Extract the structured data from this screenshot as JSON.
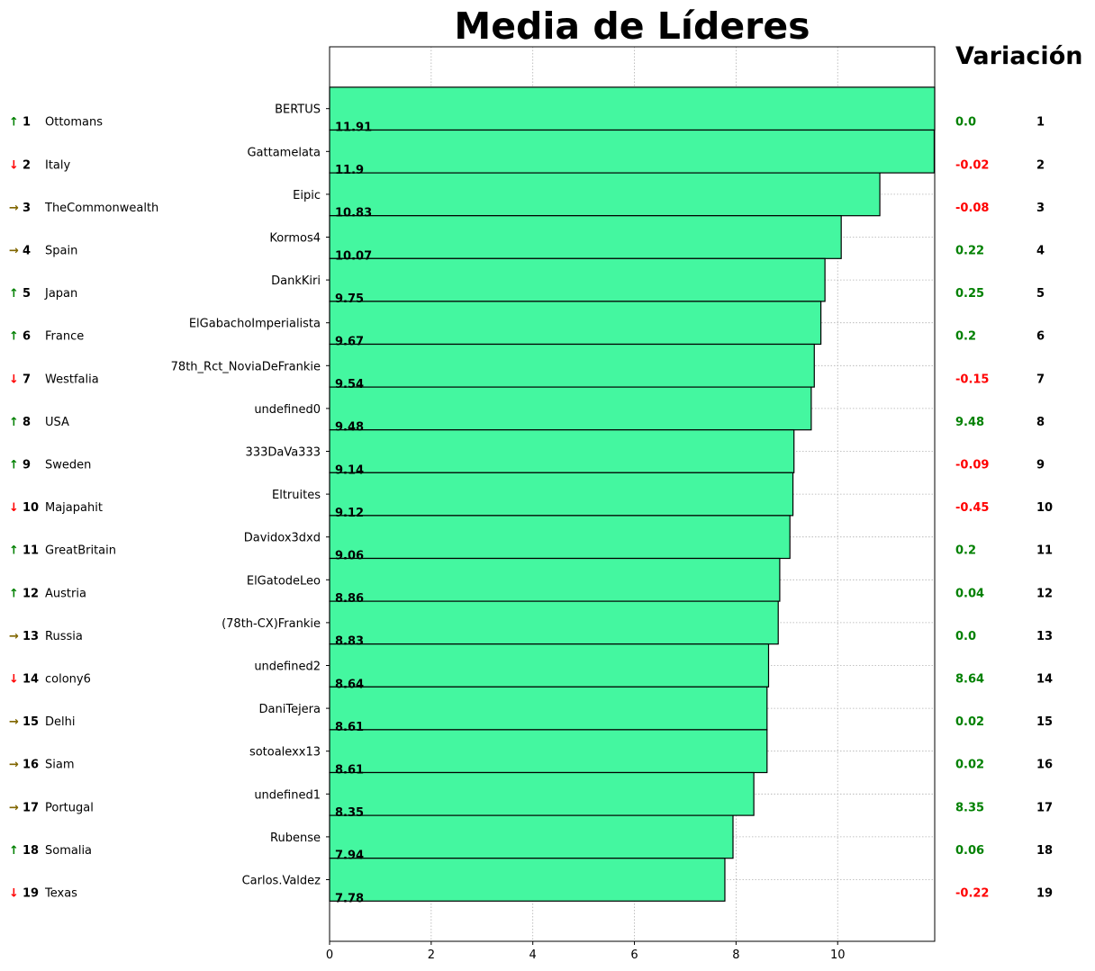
{
  "title": "Media de Líderes",
  "side_title": "Variación",
  "colors": {
    "bar": "#44f7a0",
    "up": "#008000",
    "down": "#ff0000",
    "same": "#806600",
    "pos_change": "#008000",
    "neg_change": "#ff0000"
  },
  "chart_data": {
    "type": "bar",
    "orientation": "horizontal",
    "title": "Media de Líderes",
    "xlim": [
      0,
      11.91
    ],
    "x_ticks": [
      0,
      2,
      4,
      6,
      8,
      10
    ],
    "grid": true,
    "categories": [
      "BERTUS",
      "Gattamelata",
      "Eipic",
      "Kormos4",
      "DankKiri",
      "ElGabachoImperialista",
      "78th_Rct_NoviaDeFrankie",
      "undefined0",
      "333DaVa333",
      "Eltruites",
      "Davidox3dxd",
      "ElGatodeLeo",
      "(78th-CX)Frankie",
      "undefined2",
      "DaniTejera",
      "sotoalexx13",
      "undefined1",
      "Rubense",
      "Carlos.Valdez"
    ],
    "values": [
      11.91,
      11.9,
      10.83,
      10.07,
      9.75,
      9.67,
      9.54,
      9.48,
      9.14,
      9.12,
      9.06,
      8.86,
      8.83,
      8.64,
      8.61,
      8.61,
      8.35,
      7.94,
      7.78
    ],
    "value_labels": [
      "11.91",
      "11.9",
      "10.83",
      "10.07",
      "9.75",
      "9.67",
      "9.54",
      "9.48",
      "9.14",
      "9.12",
      "9.06",
      "8.86",
      "8.83",
      "8.64",
      "8.61",
      "8.61",
      "8.35",
      "7.94",
      "7.78"
    ]
  },
  "left_table": [
    {
      "arrow": "↑",
      "dir": "up",
      "rank": "1",
      "nation": "Ottomans"
    },
    {
      "arrow": "↓",
      "dir": "down",
      "rank": "2",
      "nation": "Italy"
    },
    {
      "arrow": "→",
      "dir": "same",
      "rank": "3",
      "nation": "TheCommonwealth"
    },
    {
      "arrow": "→",
      "dir": "same",
      "rank": "4",
      "nation": "Spain"
    },
    {
      "arrow": "↑",
      "dir": "up",
      "rank": "5",
      "nation": "Japan"
    },
    {
      "arrow": "↑",
      "dir": "up",
      "rank": "6",
      "nation": "France"
    },
    {
      "arrow": "↓",
      "dir": "down",
      "rank": "7",
      "nation": "Westfalia"
    },
    {
      "arrow": "↑",
      "dir": "up",
      "rank": "8",
      "nation": "USA"
    },
    {
      "arrow": "↑",
      "dir": "up",
      "rank": "9",
      "nation": "Sweden"
    },
    {
      "arrow": "↓",
      "dir": "down",
      "rank": "10",
      "nation": "Majapahit"
    },
    {
      "arrow": "↑",
      "dir": "up",
      "rank": "11",
      "nation": "GreatBritain"
    },
    {
      "arrow": "↑",
      "dir": "up",
      "rank": "12",
      "nation": "Austria"
    },
    {
      "arrow": "→",
      "dir": "same",
      "rank": "13",
      "nation": "Russia"
    },
    {
      "arrow": "↓",
      "dir": "down",
      "rank": "14",
      "nation": "colony6"
    },
    {
      "arrow": "→",
      "dir": "same",
      "rank": "15",
      "nation": "Delhi"
    },
    {
      "arrow": "→",
      "dir": "same",
      "rank": "16",
      "nation": "Siam"
    },
    {
      "arrow": "→",
      "dir": "same",
      "rank": "17",
      "nation": "Portugal"
    },
    {
      "arrow": "↑",
      "dir": "up",
      "rank": "18",
      "nation": "Somalia"
    },
    {
      "arrow": "↓",
      "dir": "down",
      "rank": "19",
      "nation": "Texas"
    }
  ],
  "right_table": [
    {
      "change": "0.0",
      "sign": "pos",
      "rank": "1"
    },
    {
      "change": "-0.02",
      "sign": "neg",
      "rank": "2"
    },
    {
      "change": "-0.08",
      "sign": "neg",
      "rank": "3"
    },
    {
      "change": "0.22",
      "sign": "pos",
      "rank": "4"
    },
    {
      "change": "0.25",
      "sign": "pos",
      "rank": "5"
    },
    {
      "change": "0.2",
      "sign": "pos",
      "rank": "6"
    },
    {
      "change": "-0.15",
      "sign": "neg",
      "rank": "7"
    },
    {
      "change": "9.48",
      "sign": "pos",
      "rank": "8"
    },
    {
      "change": "-0.09",
      "sign": "neg",
      "rank": "9"
    },
    {
      "change": "-0.45",
      "sign": "neg",
      "rank": "10"
    },
    {
      "change": "0.2",
      "sign": "pos",
      "rank": "11"
    },
    {
      "change": "0.04",
      "sign": "pos",
      "rank": "12"
    },
    {
      "change": "0.0",
      "sign": "pos",
      "rank": "13"
    },
    {
      "change": "8.64",
      "sign": "pos",
      "rank": "14"
    },
    {
      "change": "0.02",
      "sign": "pos",
      "rank": "15"
    },
    {
      "change": "0.02",
      "sign": "pos",
      "rank": "16"
    },
    {
      "change": "8.35",
      "sign": "pos",
      "rank": "17"
    },
    {
      "change": "0.06",
      "sign": "pos",
      "rank": "18"
    },
    {
      "change": "-0.22",
      "sign": "neg",
      "rank": "19"
    }
  ]
}
